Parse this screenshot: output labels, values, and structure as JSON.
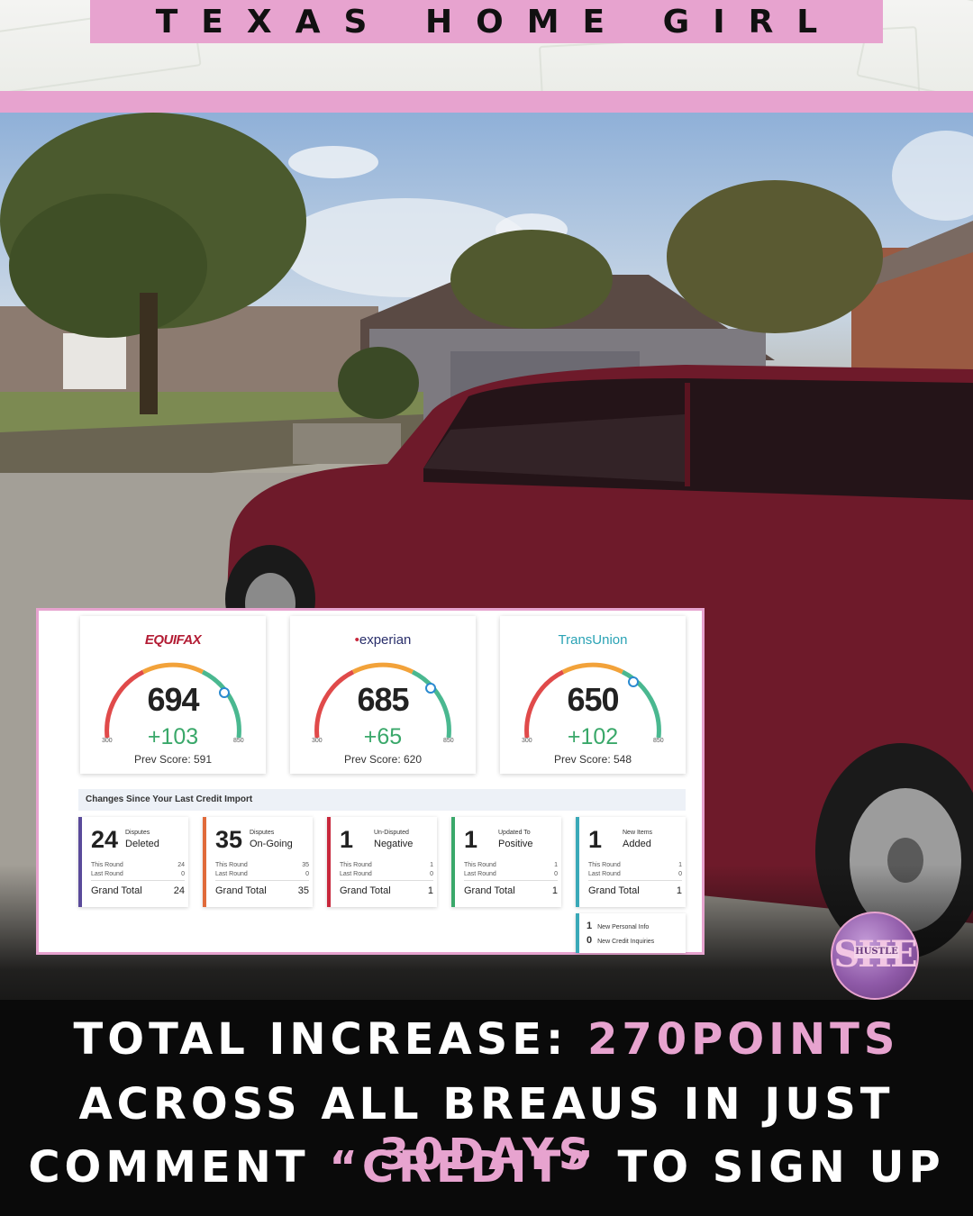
{
  "header": {
    "title": "TEXAS HOME GIRL"
  },
  "scores": [
    {
      "bureau": "EQUIFAX",
      "score": "694",
      "delta": "+103",
      "prev": "Prev Score: 591",
      "min": "300",
      "max": "850"
    },
    {
      "bureau": "experian",
      "score": "685",
      "delta": "+65",
      "prev": "Prev Score: 620",
      "min": "300",
      "max": "850"
    },
    {
      "bureau": "TransUnion",
      "score": "650",
      "delta": "+102",
      "prev": "Prev Score: 548",
      "min": "300",
      "max": "850"
    }
  ],
  "changes": {
    "title": "Changes Since Your Last Credit Import",
    "this_round_label": "This Round",
    "last_round_label": "Last Round",
    "grand_total_label": "Grand Total",
    "items": [
      {
        "num": "24",
        "small": "Disputes",
        "big": "Deleted",
        "this_round": "24",
        "last_round": "0",
        "total": "24",
        "color": "#5a4a9a"
      },
      {
        "num": "35",
        "small": "Disputes",
        "big": "On-Going",
        "this_round": "35",
        "last_round": "0",
        "total": "35",
        "color": "#e06a3a"
      },
      {
        "num": "1",
        "small": "Un-Disputed",
        "big": "Negative",
        "this_round": "1",
        "last_round": "0",
        "total": "1",
        "color": "#c8283c"
      },
      {
        "num": "1",
        "small": "Updated To",
        "big": "Positive",
        "this_round": "1",
        "last_round": "0",
        "total": "1",
        "color": "#3aa86a"
      },
      {
        "num": "1",
        "small": "New Items",
        "big": "Added",
        "this_round": "1",
        "last_round": "0",
        "total": "1",
        "color": "#3aa9b8"
      }
    ],
    "extra": [
      {
        "num": "1",
        "label": "New Personal Info"
      },
      {
        "num": "0",
        "label": "New Credit Inquiries"
      }
    ]
  },
  "badge": {
    "main": "SHE",
    "sub": "HUSTLE"
  },
  "caption": {
    "line1_a": "TOTAL INCREASE: ",
    "line1_b": "270POINTS",
    "line2_a": "ACROSS ALL BREAUS IN JUST ",
    "line2_b": "30DAYS",
    "line3_a": "COMMENT ",
    "line3_b": "“CREDIT”",
    "line3_c": " TO SIGN UP"
  },
  "colors": {
    "accent_pink": "#e7a3cf",
    "car": "#6e1a2a"
  }
}
